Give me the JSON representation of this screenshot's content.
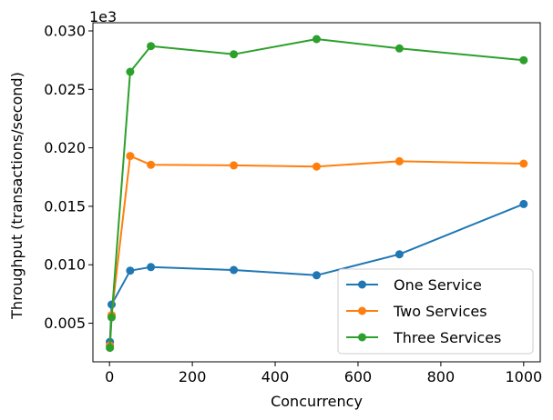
{
  "chart_data": {
    "type": "line",
    "title": "",
    "xlabel": "Concurrency",
    "ylabel": "Throughput (transactions/second)",
    "y_offset_label": "1e3",
    "xlim": [
      -40,
      1040
    ],
    "ylim": [
      0.0017,
      0.0307
    ],
    "x_ticks": [
      0,
      200,
      400,
      600,
      800,
      1000
    ],
    "x_tick_labels": [
      "0",
      "200",
      "400",
      "600",
      "800",
      "1000"
    ],
    "y_ticks": [
      0.005,
      0.01,
      0.015,
      0.02,
      0.025,
      0.03
    ],
    "y_tick_labels": [
      "0.005",
      "0.010",
      "0.015",
      "0.020",
      "0.025",
      "0.030"
    ],
    "grid": false,
    "legend_position": "lower-right",
    "series": [
      {
        "name": "One Service",
        "color": "#1f77b4",
        "marker": "circle",
        "x": [
          1,
          5,
          50,
          100,
          300,
          500,
          700,
          1000
        ],
        "y": [
          0.0034,
          0.0066,
          0.0095,
          0.0098,
          0.00955,
          0.0091,
          0.0109,
          0.0152
        ]
      },
      {
        "name": "Two Services",
        "color": "#ff7f0e",
        "marker": "circle",
        "x": [
          1,
          5,
          50,
          100,
          300,
          500,
          700,
          1000
        ],
        "y": [
          0.0031,
          0.0057,
          0.0193,
          0.01855,
          0.0185,
          0.0184,
          0.01885,
          0.01865
        ]
      },
      {
        "name": "Three Services",
        "color": "#2ca02c",
        "marker": "circle",
        "x": [
          1,
          5,
          50,
          100,
          300,
          500,
          700,
          1000
        ],
        "y": [
          0.0029,
          0.0055,
          0.0265,
          0.0287,
          0.028,
          0.0293,
          0.0285,
          0.0275
        ]
      }
    ]
  }
}
